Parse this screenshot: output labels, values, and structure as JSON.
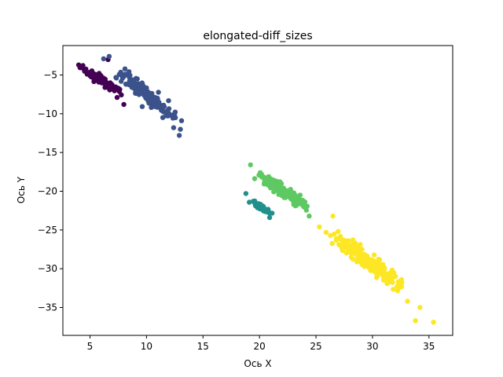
{
  "chart_data": {
    "type": "scatter",
    "title": "elongated-diff_sizes",
    "xlabel": "Ось X",
    "ylabel": "Ось Y",
    "xlim": [
      2.6,
      37.1
    ],
    "ylim": [
      -38.6,
      -1.2
    ],
    "xticks": [
      5,
      10,
      15,
      20,
      25,
      30,
      35
    ],
    "yticks": [
      -5,
      -10,
      -15,
      -20,
      -25,
      -30,
      -35
    ],
    "grid": false,
    "legend": "none",
    "clusters": [
      {
        "color": "#440154",
        "center": [
          6.0,
          -5.7
        ],
        "dir": [
          0.72,
          -0.69
        ],
        "half_length": 2.7,
        "width": 0.35,
        "n": 90,
        "extras": [
          [
            4.0,
            -3.7
          ],
          [
            6.6,
            -3.0
          ],
          [
            8.0,
            -8.8
          ],
          [
            7.4,
            -7.9
          ]
        ]
      },
      {
        "color": "#3b528b",
        "center": [
          10.0,
          -7.6
        ],
        "dir": [
          0.66,
          -0.75
        ],
        "half_length": 4.0,
        "width": 0.6,
        "n": 150,
        "extras": [
          [
            6.2,
            -2.9
          ],
          [
            6.7,
            -2.6
          ],
          [
            12.9,
            -12.8
          ],
          [
            13.0,
            -12.0
          ],
          [
            12.4,
            -11.8
          ],
          [
            13.1,
            -10.9
          ]
        ]
      },
      {
        "color": "#21908d",
        "center": [
          20.2,
          -22.1
        ],
        "dir": [
          0.7,
          -0.72
        ],
        "half_length": 1.3,
        "width": 0.18,
        "n": 60,
        "extras": [
          [
            18.8,
            -20.3
          ],
          [
            20.9,
            -23.4
          ]
        ]
      },
      {
        "color": "#5ec962",
        "center": [
          22.0,
          -19.9
        ],
        "dir": [
          0.7,
          -0.72
        ],
        "half_length": 3.4,
        "width": 0.45,
        "n": 140,
        "extras": [
          [
            19.2,
            -16.6
          ],
          [
            23.6,
            -20.5
          ],
          [
            24.4,
            -23.2
          ]
        ]
      },
      {
        "color": "#fde725",
        "center": [
          29.5,
          -29.0
        ],
        "dir": [
          0.67,
          -0.74
        ],
        "half_length": 4.8,
        "width": 0.6,
        "n": 240,
        "extras": [
          [
            25.3,
            -24.6
          ],
          [
            26.5,
            -23.2
          ],
          [
            25.9,
            -25.3
          ],
          [
            33.8,
            -36.7
          ],
          [
            35.4,
            -36.9
          ],
          [
            34.2,
            -35.0
          ],
          [
            33.1,
            -34.2
          ]
        ]
      }
    ]
  }
}
